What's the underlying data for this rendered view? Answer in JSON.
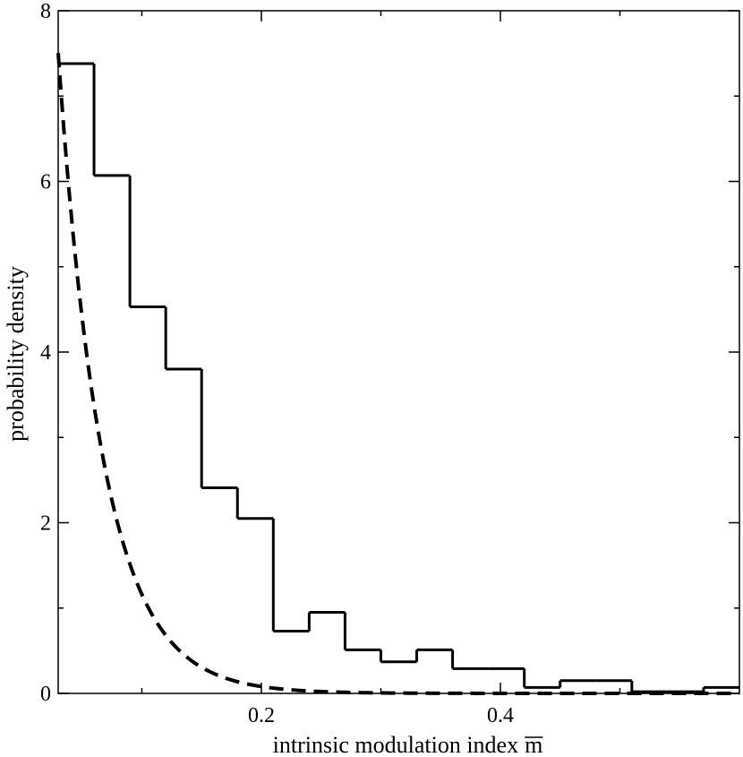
{
  "chart_data": {
    "type": "histogram",
    "title": "",
    "xlabel": "intrinsic modulation index",
    "xlabel_symbol": "m",
    "ylabel": "probability density",
    "xlim": [
      0.03,
      0.6
    ],
    "ylim": [
      0,
      8
    ],
    "x_ticks": [
      0.2,
      0.4
    ],
    "x_tick_labels": [
      "0.2",
      "0.4"
    ],
    "y_ticks": [
      0,
      2,
      4,
      6,
      8
    ],
    "y_tick_labels": [
      "0",
      "2",
      "4",
      "6",
      "8"
    ],
    "grid": false,
    "series": [
      {
        "name": "histogram",
        "style": "solid step",
        "bin_edges": [
          0.03,
          0.06,
          0.09,
          0.12,
          0.15,
          0.18,
          0.21,
          0.24,
          0.27,
          0.3,
          0.33,
          0.36,
          0.39,
          0.42,
          0.45,
          0.48,
          0.51,
          0.54,
          0.57,
          0.6
        ],
        "values": [
          7.38,
          6.07,
          4.53,
          3.8,
          2.41,
          2.05,
          0.73,
          0.95,
          0.51,
          0.37,
          0.51,
          0.29,
          0.29,
          0.07,
          0.15,
          0.15,
          0.02,
          0.02,
          0.07
        ]
      },
      {
        "name": "exponential fit",
        "style": "dashed",
        "function": "A*exp(-x/tau)",
        "A": 16.7,
        "tau": 0.0375,
        "x_range": [
          0.03,
          0.6
        ]
      }
    ]
  }
}
